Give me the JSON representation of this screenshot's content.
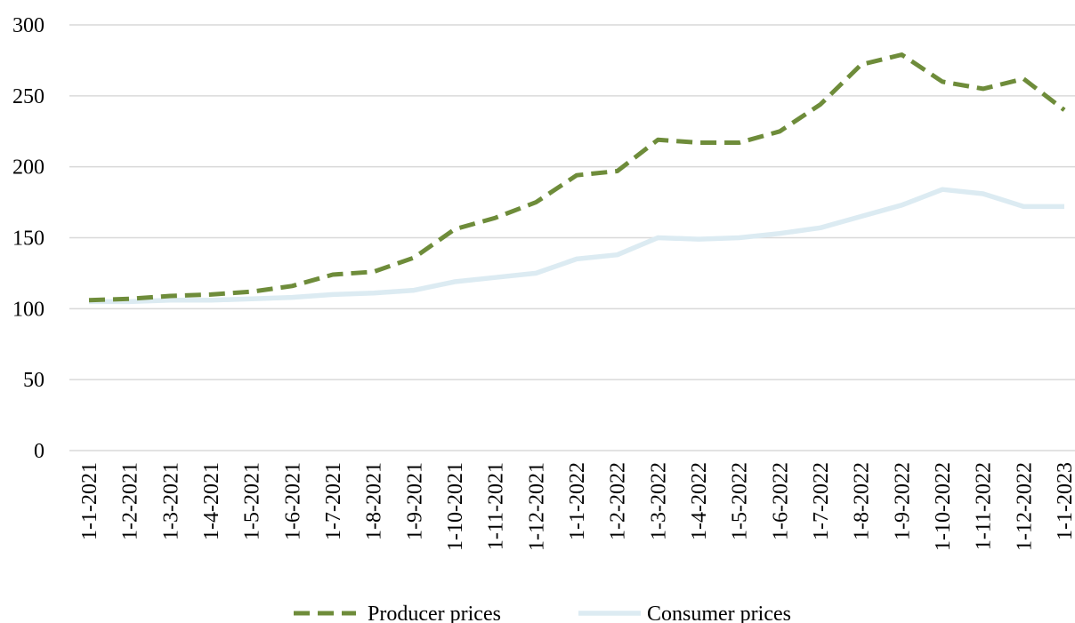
{
  "chart_data": {
    "type": "line",
    "categories": [
      "1-1-2021",
      "1-2-2021",
      "1-3-2021",
      "1-4-2021",
      "1-5-2021",
      "1-6-2021",
      "1-7-2021",
      "1-8-2021",
      "1-9-2021",
      "1-10-2021",
      "1-11-2021",
      "1-12-2021",
      "1-1-2022",
      "1-2-2022",
      "1-3-2022",
      "1-4-2022",
      "1-5-2022",
      "1-6-2022",
      "1-7-2022",
      "1-8-2022",
      "1-9-2022",
      "1-10-2022",
      "1-11-2022",
      "1-12-2022",
      "1-1-2023"
    ],
    "series": [
      {
        "name": "Producer prices",
        "color": "#6e8c3a",
        "style": "dashed",
        "values": [
          106,
          107,
          109,
          110,
          112,
          116,
          124,
          126,
          136,
          156,
          164,
          175,
          194,
          197,
          219,
          217,
          217,
          225,
          244,
          272,
          279,
          260,
          255,
          262,
          240
        ]
      },
      {
        "name": "Consumer prices",
        "color": "#dcebf2",
        "style": "solid",
        "values": [
          105,
          105,
          106,
          106,
          107,
          108,
          110,
          111,
          113,
          119,
          122,
          125,
          135,
          138,
          150,
          149,
          150,
          153,
          157,
          165,
          173,
          184,
          181,
          172,
          172
        ]
      }
    ],
    "ylim": [
      0,
      300
    ],
    "yticks": [
      0,
      50,
      100,
      150,
      200,
      250,
      300
    ],
    "grid": true,
    "legend_position": "bottom"
  }
}
